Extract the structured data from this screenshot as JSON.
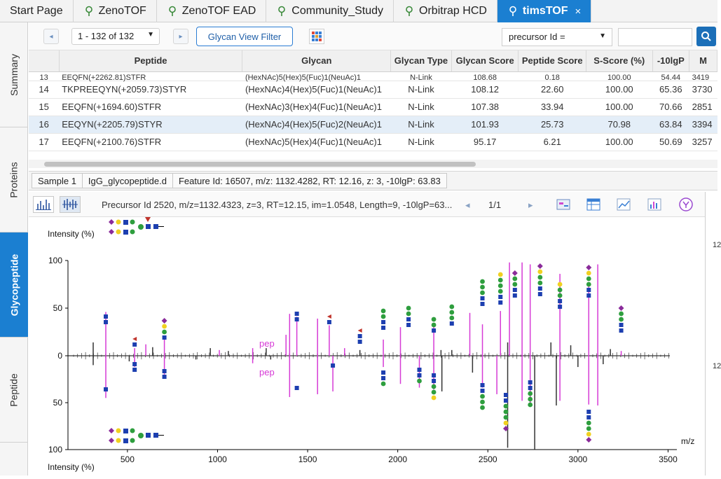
{
  "tabs": [
    {
      "label": "Start Page",
      "pin": false
    },
    {
      "label": "ZenoTOF",
      "pin": true
    },
    {
      "label": "ZenoTOF EAD",
      "pin": true
    },
    {
      "label": "Community_Study",
      "pin": true
    },
    {
      "label": "Orbitrap HCD",
      "pin": true
    },
    {
      "label": "timsTOF",
      "pin": true,
      "active": true
    }
  ],
  "tab_close": "×",
  "side_tabs": [
    "Summary",
    "Proteins",
    "Glycopeptide",
    "Peptide"
  ],
  "toolbar": {
    "prev": "◂",
    "next": "▸",
    "pager": "1 - 132 of 132",
    "filter_button": "Glycan View Filter",
    "search_field": "precursor Id ="
  },
  "table": {
    "columns": [
      "Peptide",
      "Glycan",
      "Glycan Type",
      "Glycan Score",
      "Peptide Score",
      "S-Score (%)",
      "-10lgP",
      "M"
    ],
    "rows": [
      [
        "13",
        "EEQFN(+2262.81)STFR",
        "(HexNAc)5(Hex)5(Fuc)1(NeuAc)1",
        "N-Link",
        "108.68",
        "0.18",
        "100.00",
        "54.44",
        "3419"
      ],
      [
        "14",
        "TKPREEQYN(+2059.73)STYR",
        "(HexNAc)4(Hex)5(Fuc)1(NeuAc)1",
        "N-Link",
        "108.12",
        "22.60",
        "100.00",
        "65.36",
        "3730"
      ],
      [
        "15",
        "EEQFN(+1694.60)STFR",
        "(HexNAc)3(Hex)4(Fuc)1(NeuAc)1",
        "N-Link",
        "107.38",
        "33.94",
        "100.00",
        "70.66",
        "2851"
      ],
      [
        "16",
        "EEQYN(+2205.79)STYR",
        "(HexNAc)4(Hex)5(Fuc)2(NeuAc)1",
        "N-Link",
        "101.93",
        "25.73",
        "70.98",
        "63.84",
        "3394"
      ],
      [
        "17",
        "EEQFN(+2100.76)STFR",
        "(HexNAc)5(Hex)4(Fuc)1(NeuAc)1",
        "N-Link",
        "95.17",
        "6.21",
        "100.00",
        "50.69",
        "3257"
      ]
    ],
    "selected_row": 3
  },
  "breadcrumb": [
    "Sample 1",
    "IgG_glycopeptide.d",
    "Feature Id: 16507, m/z: 1132.4282, RT: 12.16, z: 3, -10lgP: 63.83"
  ],
  "spectrum": {
    "precursor_info": "Precursor Id 2520, m/z=1132.4323, z=3, RT=12.15, im=1.0548, Length=9, -10lgP=63...",
    "page": "1/1",
    "right_ticks": [
      "12",
      "12"
    ]
  },
  "chart_data": {
    "type": "bar",
    "title": "",
    "xlabel": "m/z",
    "ylabel_top": "Intensity (%)",
    "ylabel_bottom": "Intensity (%)",
    "xlim": [
      170,
      3510
    ],
    "x_ticks": [
      500,
      1000,
      1500,
      2000,
      2500,
      3000,
      3500
    ],
    "y_ticks_top": [
      100,
      50,
      0
    ],
    "y_ticks_bottom": [
      50,
      100
    ],
    "annotations": [
      "pep",
      "pep"
    ],
    "series": [
      {
        "name": "matched",
        "color": "#d63ad6",
        "top": [
          [
            380,
            46
          ],
          [
            540,
            8
          ],
          [
            602,
            12
          ],
          [
            705,
            20
          ],
          [
            1010,
            6
          ],
          [
            1195,
            8
          ],
          [
            1380,
            22
          ],
          [
            1400,
            44
          ],
          [
            1440,
            41
          ],
          [
            1555,
            39
          ],
          [
            1620,
            32
          ],
          [
            1705,
            8
          ],
          [
            1920,
            17
          ],
          [
            2015,
            30
          ],
          [
            2200,
            31
          ],
          [
            2400,
            45
          ],
          [
            2470,
            33
          ],
          [
            2570,
            47
          ],
          [
            2620,
            98
          ],
          [
            2690,
            98
          ],
          [
            2735,
            96
          ],
          [
            2900,
            86
          ],
          [
            3060,
            77
          ],
          [
            3110,
            96
          ],
          [
            3240,
            5
          ]
        ],
        "bottom": [
          [
            380,
            45
          ],
          [
            540,
            12
          ],
          [
            705,
            20
          ],
          [
            1195,
            8
          ],
          [
            1400,
            44
          ],
          [
            1555,
            41
          ],
          [
            1640,
            38
          ],
          [
            1920,
            12
          ],
          [
            2015,
            30
          ],
          [
            2120,
            34
          ],
          [
            2200,
            36
          ],
          [
            2470,
            34
          ],
          [
            2550,
            41
          ],
          [
            2690,
            48
          ],
          [
            2735,
            54
          ],
          [
            2900,
            48
          ],
          [
            3060,
            52
          ],
          [
            3110,
            53
          ]
        ]
      },
      {
        "name": "unmatched",
        "color": "#333333",
        "top": [
          [
            310,
            14
          ],
          [
            640,
            9
          ],
          [
            960,
            8
          ],
          [
            1060,
            5
          ],
          [
            1270,
            8
          ],
          [
            1790,
            6
          ],
          [
            2240,
            6
          ],
          [
            2300,
            6
          ],
          [
            2610,
            14
          ],
          [
            2850,
            14
          ],
          [
            2960,
            11
          ],
          [
            3180,
            7
          ]
        ],
        "bottom": [
          [
            310,
            10
          ],
          [
            510,
            6
          ],
          [
            880,
            4
          ],
          [
            1295,
            4
          ],
          [
            2245,
            38
          ],
          [
            2415,
            18
          ],
          [
            2610,
            98
          ],
          [
            2760,
            100
          ],
          [
            2880,
            53
          ],
          [
            3000,
            12
          ],
          [
            3140,
            9
          ]
        ]
      }
    ]
  }
}
